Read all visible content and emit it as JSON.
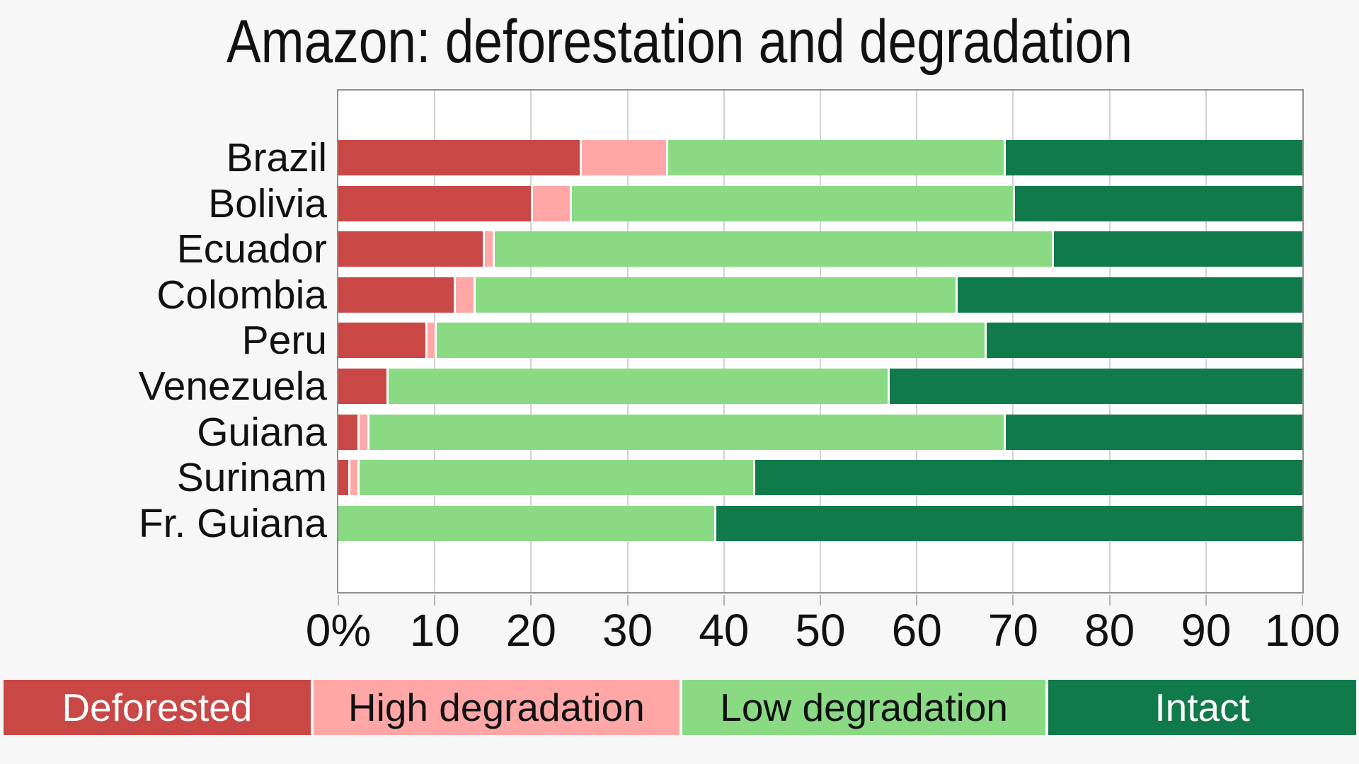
{
  "chart_data": {
    "type": "bar",
    "orientation": "horizontal",
    "stacked": true,
    "title": "Amazon: deforestation and degradation",
    "categories": [
      "Brazil",
      "Bolivia",
      "Ecuador",
      "Colombia",
      "Peru",
      "Venezuela",
      "Guiana",
      "Surinam",
      "Fr. Guiana"
    ],
    "series": [
      {
        "name": "Deforested",
        "color": "#c94745",
        "label_color": "#ffffff",
        "values": [
          25,
          20,
          15,
          12,
          9,
          5,
          2,
          1,
          0
        ]
      },
      {
        "name": "High degradation",
        "color": "#ffa7a7",
        "label_color": "#111111",
        "values": [
          9,
          4,
          1,
          2,
          1,
          0,
          1,
          1,
          0
        ]
      },
      {
        "name": "Low degradation",
        "color": "#8ada84",
        "label_color": "#111111",
        "values": [
          35,
          46,
          58,
          50,
          57,
          52,
          66,
          41,
          39
        ]
      },
      {
        "name": "Intact",
        "color": "#117a4b",
        "label_color": "#ffffff",
        "values": [
          31,
          30,
          26,
          36,
          33,
          43,
          31,
          57,
          61
        ]
      }
    ],
    "x_axis": {
      "min": 0,
      "max": 100,
      "tick_labels": [
        "0%",
        "10",
        "20",
        "30",
        "40",
        "50",
        "60",
        "70",
        "80",
        "90",
        "100"
      ],
      "tick_step": 10
    },
    "grid": true,
    "legend_position": "bottom",
    "background_color": "#f7f7f7",
    "plot_background_color": "#ffffff"
  }
}
